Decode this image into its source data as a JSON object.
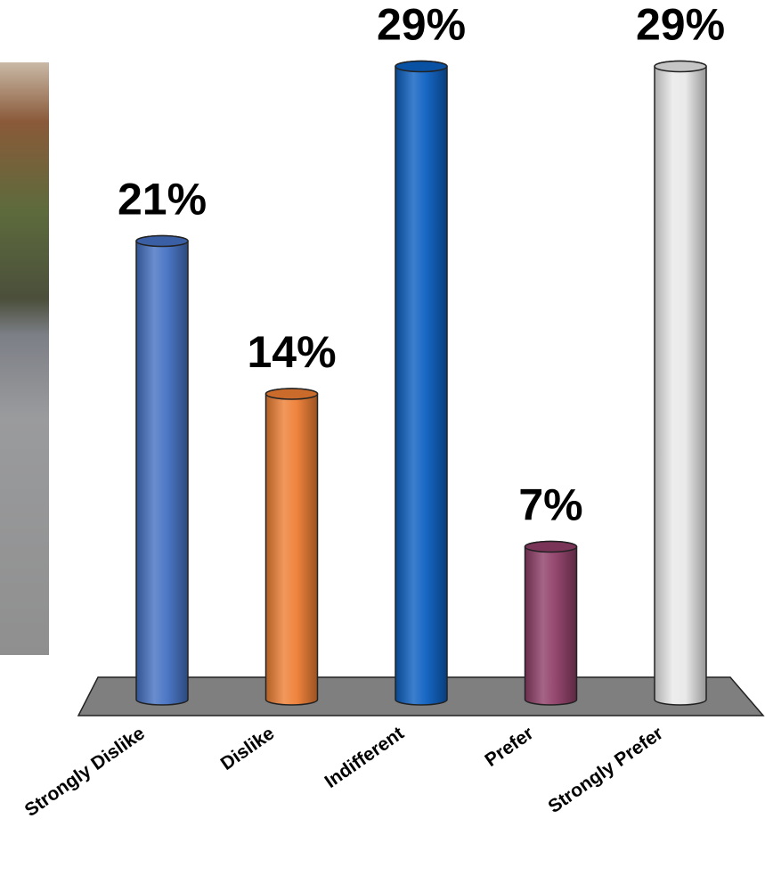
{
  "chart_data": {
    "type": "bar",
    "categories": [
      "Strongly Dislike",
      "Dislike",
      "Indifferent",
      "Prefer",
      "Strongly Prefer"
    ],
    "values": [
      21,
      14,
      29,
      7,
      29
    ],
    "value_labels": [
      "21%",
      "14%",
      "29%",
      "7%",
      "29%"
    ],
    "colors": [
      "#4470c2",
      "#ee7e33",
      "#0b5fc0",
      "#8e3d66",
      "#e8e8e8"
    ]
  }
}
